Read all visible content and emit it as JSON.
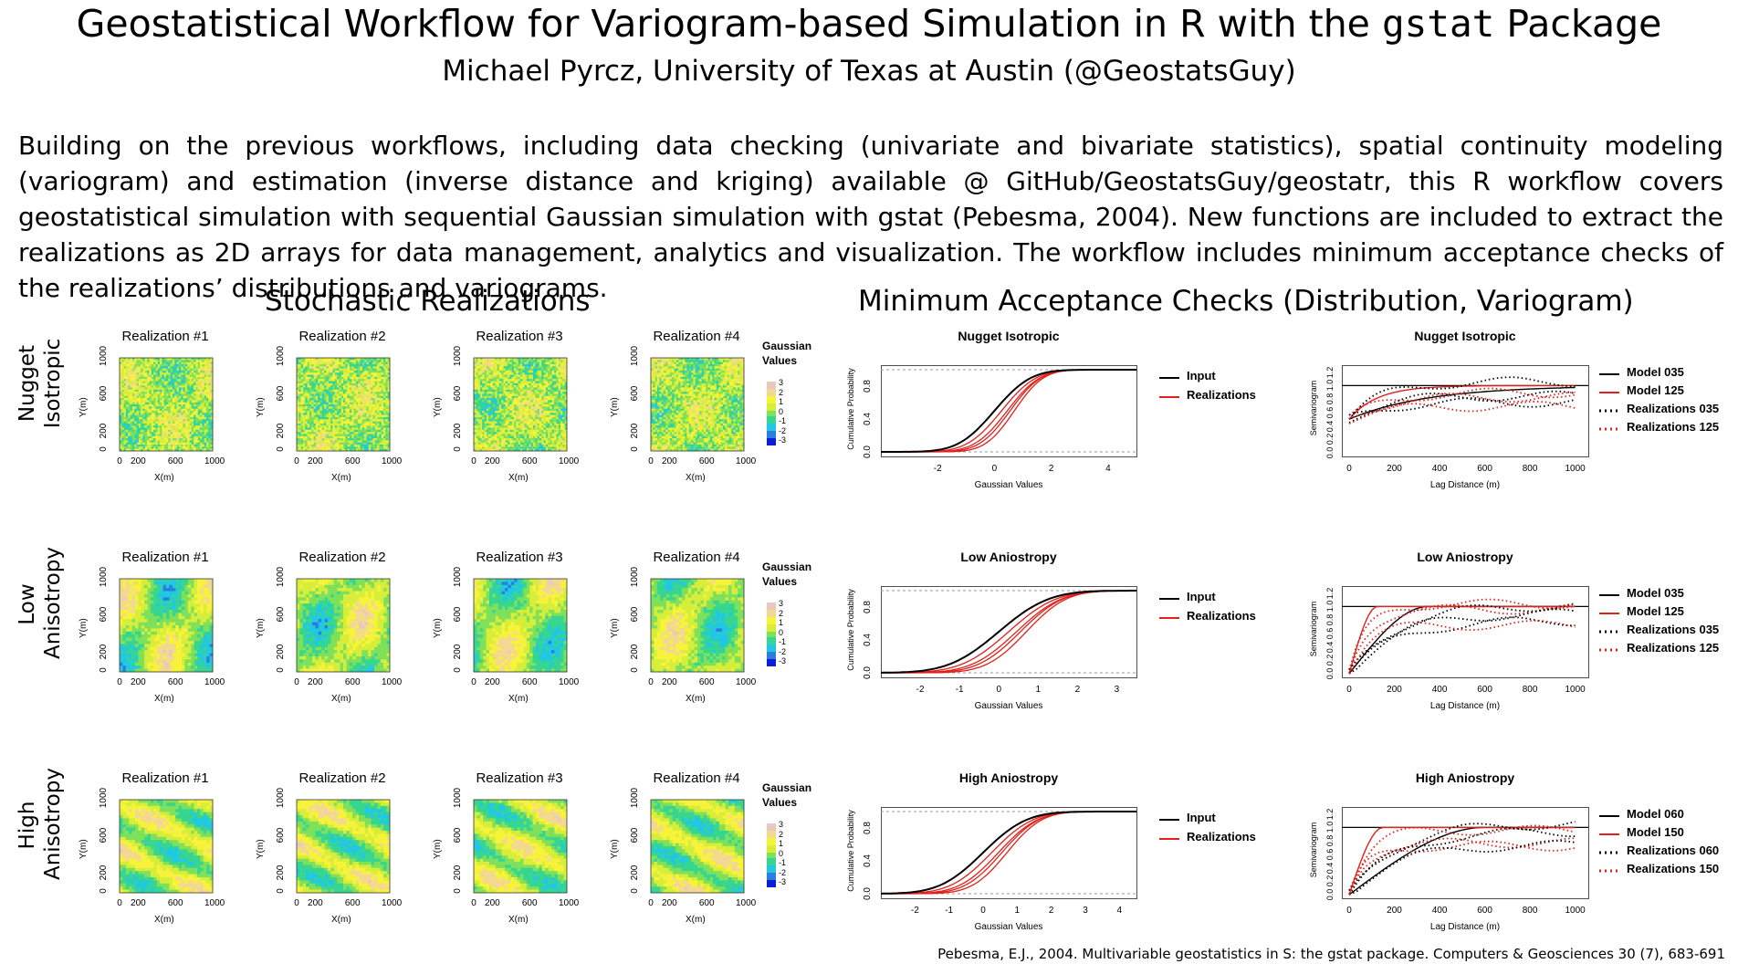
{
  "header": {
    "title_pre": "Geostatistical Workflow for Variogram-based Simulation in R with the ",
    "title_code": "gstat",
    "title_post": " Package",
    "subtitle": "Michael Pyrcz, University of Texas at Austin (@GeostatsGuy)"
  },
  "intro": "Building on the previous workflows, including data checking (univariate and bivariate statistics), spatial continuity modeling (variogram) and estimation (inverse distance and kriging) available @ GitHub/GeostatsGuy/geostatr, this R workflow covers geostatistical simulation with sequential Gaussian simulation with gstat (Pebesma, 2004).  New functions are included to extract the realizations as 2D arrays for data management, analytics and visualization. The workflow includes minimum acceptance checks of the realizations’ distributions and variograms.",
  "sections": {
    "realizations_title": "Stochastic Realizations",
    "checks_title": "Minimum Acceptance Checks (Distribution, Variogram)"
  },
  "rows": [
    {
      "label_line1": "Nugget",
      "label_line2": "Isotropic",
      "pattern": "nugget",
      "cdf_title": "Nugget Isotropic",
      "vario_title": "Nugget Isotropic",
      "cdf_xticks": [
        "-2",
        "0",
        "2",
        "4"
      ],
      "cdf_xrange": [
        -4,
        5
      ],
      "legend_models": [
        "Model 035",
        "Model 125",
        "Realizations 035",
        "Realizations 125"
      ]
    },
    {
      "label_line1": "Low",
      "label_line2": "Anisotropy",
      "pattern": "low",
      "cdf_title": "Low Aniostropy",
      "vario_title": "Low Aniostropy",
      "cdf_xticks": [
        "-2",
        "-1",
        "0",
        "1",
        "2",
        "3"
      ],
      "cdf_xrange": [
        -3,
        3.5
      ],
      "legend_models": [
        "Model 035",
        "Model 125",
        "Realizations 035",
        "Realizations 125"
      ]
    },
    {
      "label_line1": "High",
      "label_line2": "Anisotropy",
      "pattern": "high",
      "cdf_title": "High Aniostropy",
      "vario_title": "High Aniostropy",
      "cdf_xticks": [
        "-2",
        "-1",
        "0",
        "1",
        "2",
        "3",
        "4"
      ],
      "cdf_xrange": [
        -3,
        4.5
      ],
      "legend_models": [
        "Model 060",
        "Model 150",
        "Realizations 060",
        "Realizations 150"
      ]
    }
  ],
  "realization_titles": [
    "Realization #1",
    "Realization #2",
    "Realization #3",
    "Realization #4"
  ],
  "map_axes": {
    "xlabel": "X(m)",
    "ylabel": "Y(m)",
    "ticks": [
      "0",
      "200",
      "600",
      "1000"
    ],
    "yticks": [
      "0",
      "200",
      "600",
      "1000"
    ]
  },
  "colorbar": {
    "title_line1": "Gaussian",
    "title_line2": "Values",
    "ticks": [
      "3",
      "2",
      "1",
      "0",
      "-1",
      "-2",
      "-3"
    ]
  },
  "cdf_axes": {
    "xlabel": "Gaussian Values",
    "ylabel": "Cumulative Probability",
    "yticks": [
      "0.0",
      "0.4",
      "0.8"
    ]
  },
  "cdf_legend": [
    "Input",
    "Realizations"
  ],
  "vario_axes": {
    "xlabel": "Lag Distance (m)",
    "ylabel": "Semivariogram",
    "xticks": [
      "0",
      "200",
      "400",
      "600",
      "800",
      "1000"
    ],
    "yticks": [
      "0.0",
      "0.2",
      "0.4",
      "0.6",
      "0.8",
      "1.0",
      "1.2"
    ]
  },
  "colors": {
    "input": "#000000",
    "realizations": "#e0201b",
    "colormap": [
      "#0a1fd6",
      "#2b7de0",
      "#21c8e0",
      "#36d690",
      "#7fe05a",
      "#d6ee3a",
      "#f7f23a",
      "#f2d890",
      "#e8c8c0"
    ]
  },
  "footnote": "Pebesma, E.J., 2004. Multivariable geostatistics in S: the gstat package. Computers & Geosciences 30 (7), 683-691"
}
